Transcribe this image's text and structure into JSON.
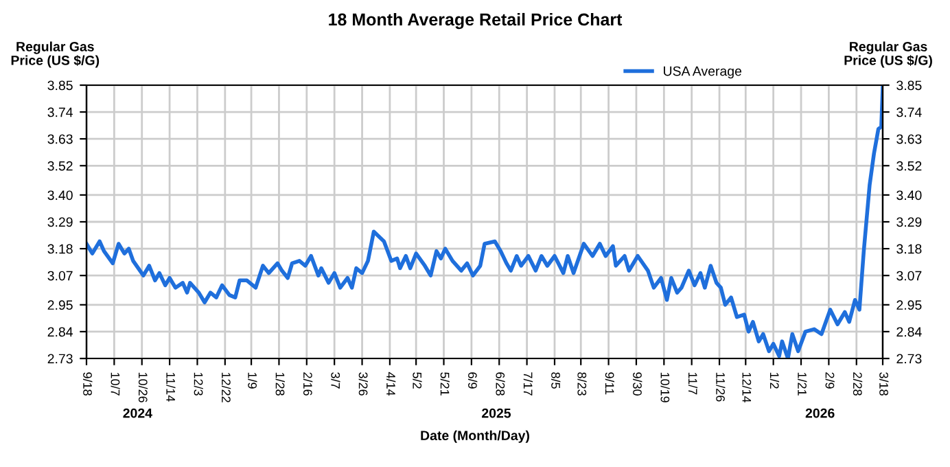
{
  "chart_data": {
    "type": "line",
    "title": "18 Month Average Retail Price Chart",
    "xlabel": "Date (Month/Day)",
    "ylabel": "Regular Gas\nPrice (US $/G)",
    "y2label": "Regular Gas\nPrice (US $/G)",
    "legend": "top",
    "grid": true,
    "marker": "none",
    "line_style": "solid",
    "xlim": [
      "2024-09-18",
      "2026-03-18"
    ],
    "xticks": [
      {
        "value": "2024-09-18",
        "label": "9/18"
      },
      {
        "value": "2024-10-07",
        "label": "10/7"
      },
      {
        "value": "2024-10-26",
        "label": "10/26"
      },
      {
        "value": "2024-11-14",
        "label": "11/14"
      },
      {
        "value": "2024-12-03",
        "label": "12/3"
      },
      {
        "value": "2024-12-22",
        "label": "12/22"
      },
      {
        "value": "2025-01-09",
        "label": "1/9"
      },
      {
        "value": "2025-01-28",
        "label": "1/28"
      },
      {
        "value": "2025-02-16",
        "label": "2/16"
      },
      {
        "value": "2025-03-07",
        "label": "3/7"
      },
      {
        "value": "2025-03-26",
        "label": "3/26"
      },
      {
        "value": "2025-04-14",
        "label": "4/14"
      },
      {
        "value": "2025-05-02",
        "label": "5/2"
      },
      {
        "value": "2025-05-21",
        "label": "5/21"
      },
      {
        "value": "2025-06-09",
        "label": "6/9"
      },
      {
        "value": "2025-06-28",
        "label": "6/28"
      },
      {
        "value": "2025-07-17",
        "label": "7/17"
      },
      {
        "value": "2025-08-05",
        "label": "8/5"
      },
      {
        "value": "2025-08-23",
        "label": "8/23"
      },
      {
        "value": "2025-09-11",
        "label": "9/11"
      },
      {
        "value": "2025-09-30",
        "label": "9/30"
      },
      {
        "value": "2025-10-19",
        "label": "10/19"
      },
      {
        "value": "2025-11-07",
        "label": "11/7"
      },
      {
        "value": "2025-11-26",
        "label": "11/26"
      },
      {
        "value": "2025-12-14",
        "label": "12/14"
      },
      {
        "value": "2026-01-02",
        "label": "1/2"
      },
      {
        "value": "2026-01-21",
        "label": "1/21"
      },
      {
        "value": "2026-02-09",
        "label": "2/9"
      },
      {
        "value": "2026-02-28",
        "label": "2/28"
      },
      {
        "value": "2026-03-18",
        "label": "3/18"
      }
    ],
    "x2lim": [
      "2024-09-18",
      "2026-03-18"
    ],
    "x2ticks": [
      {
        "value": "2024-10-23",
        "label": "2024"
      },
      {
        "value": "2025-06-26",
        "label": "2025"
      },
      {
        "value": "2026-02-03",
        "label": "2026"
      }
    ],
    "ylim": [
      2.73,
      3.85
    ],
    "yticks": [
      2.73,
      2.84,
      2.95,
      3.07,
      3.18,
      3.29,
      {
        "value": 3.4,
        "label": "3.40"
      },
      3.52,
      3.63,
      3.74,
      3.85
    ],
    "y2lim": [
      2.73,
      3.85
    ],
    "y2ticks": [
      2.73,
      2.84,
      2.95,
      3.07,
      3.18,
      3.29,
      {
        "value": 3.4,
        "label": "3.40"
      },
      3.52,
      3.63,
      3.74,
      3.85
    ],
    "series": [
      {
        "name": "USA Average",
        "color": "#1f6fdc",
        "x": [
          "2024-09-18",
          "2024-09-22",
          "2024-09-27",
          "2024-09-30",
          "2024-10-06",
          "2024-10-10",
          "2024-10-14",
          "2024-10-17",
          "2024-10-20",
          "2024-10-27",
          "2024-10-31",
          "2024-11-04",
          "2024-11-07",
          "2024-11-11",
          "2024-11-14",
          "2024-11-18",
          "2024-11-23",
          "2024-11-26",
          "2024-11-28",
          "2024-12-04",
          "2024-12-08",
          "2024-12-12",
          "2024-12-16",
          "2024-12-20",
          "2024-12-25",
          "2024-12-29",
          "2025-01-01",
          "2025-01-06",
          "2025-01-12",
          "2025-01-17",
          "2025-01-21",
          "2025-01-27",
          "2025-01-30",
          "2025-02-03",
          "2025-02-06",
          "2025-02-11",
          "2025-02-15",
          "2025-02-19",
          "2025-02-24",
          "2025-02-26",
          "2025-03-03",
          "2025-03-07",
          "2025-03-11",
          "2025-03-16",
          "2025-03-19",
          "2025-03-22",
          "2025-03-26",
          "2025-03-30",
          "2025-04-03",
          "2025-04-10",
          "2025-04-15",
          "2025-04-19",
          "2025-04-21",
          "2025-04-25",
          "2025-04-28",
          "2025-05-02",
          "2025-05-08",
          "2025-05-12",
          "2025-05-16",
          "2025-05-19",
          "2025-05-22",
          "2025-05-27",
          "2025-06-02",
          "2025-06-06",
          "2025-06-10",
          "2025-06-15",
          "2025-06-18",
          "2025-06-25",
          "2025-06-29",
          "2025-07-03",
          "2025-07-06",
          "2025-07-10",
          "2025-07-13",
          "2025-07-18",
          "2025-07-23",
          "2025-07-27",
          "2025-07-31",
          "2025-08-05",
          "2025-08-11",
          "2025-08-14",
          "2025-08-18",
          "2025-08-25",
          "2025-08-31",
          "2025-09-05",
          "2025-09-09",
          "2025-09-14",
          "2025-09-16",
          "2025-09-22",
          "2025-09-25",
          "2025-10-01",
          "2025-10-08",
          "2025-10-12",
          "2025-10-17",
          "2025-10-21",
          "2025-10-24",
          "2025-10-28",
          "2025-10-31",
          "2025-11-05",
          "2025-11-09",
          "2025-11-13",
          "2025-11-16",
          "2025-11-20",
          "2025-11-24",
          "2025-11-27",
          "2025-11-30",
          "2025-12-04",
          "2025-12-08",
          "2025-12-13",
          "2025-12-16",
          "2025-12-19",
          "2025-12-23",
          "2025-12-26",
          "2025-12-30",
          "2026-01-02",
          "2026-01-06",
          "2026-01-08",
          "2026-01-12",
          "2026-01-15",
          "2026-01-19",
          "2026-01-24",
          "2026-01-30",
          "2026-02-04",
          "2026-02-10",
          "2026-02-15",
          "2026-02-20",
          "2026-02-23",
          "2026-02-27",
          "2026-03-02",
          "2026-03-05",
          "2026-03-09",
          "2026-03-12",
          "2026-03-15",
          "2026-03-17",
          "2026-03-18"
        ],
        "values": [
          3.2,
          3.16,
          3.21,
          3.17,
          3.12,
          3.2,
          3.16,
          3.18,
          3.13,
          3.07,
          3.11,
          3.05,
          3.08,
          3.03,
          3.06,
          3.02,
          3.04,
          3.0,
          3.04,
          3.0,
          2.96,
          3.0,
          2.98,
          3.03,
          2.99,
          2.98,
          3.05,
          3.05,
          3.02,
          3.11,
          3.08,
          3.12,
          3.09,
          3.06,
          3.12,
          3.13,
          3.11,
          3.15,
          3.07,
          3.1,
          3.04,
          3.08,
          3.02,
          3.06,
          3.02,
          3.1,
          3.08,
          3.13,
          3.25,
          3.21,
          3.13,
          3.14,
          3.1,
          3.15,
          3.1,
          3.16,
          3.11,
          3.07,
          3.17,
          3.14,
          3.18,
          3.13,
          3.09,
          3.12,
          3.07,
          3.11,
          3.2,
          3.21,
          3.17,
          3.12,
          3.09,
          3.15,
          3.11,
          3.15,
          3.09,
          3.15,
          3.11,
          3.15,
          3.08,
          3.15,
          3.08,
          3.2,
          3.15,
          3.2,
          3.15,
          3.19,
          3.11,
          3.15,
          3.09,
          3.15,
          3.09,
          3.02,
          3.06,
          2.97,
          3.06,
          3.0,
          3.02,
          3.09,
          3.03,
          3.08,
          3.02,
          3.11,
          3.04,
          3.02,
          2.95,
          2.98,
          2.9,
          2.91,
          2.84,
          2.88,
          2.8,
          2.83,
          2.76,
          2.79,
          2.74,
          2.8,
          2.73,
          2.83,
          2.76,
          2.84,
          2.85,
          2.83,
          2.93,
          2.87,
          2.92,
          2.88,
          2.97,
          2.93,
          3.17,
          3.44,
          3.57,
          3.67,
          3.68,
          3.84
        ]
      }
    ]
  }
}
